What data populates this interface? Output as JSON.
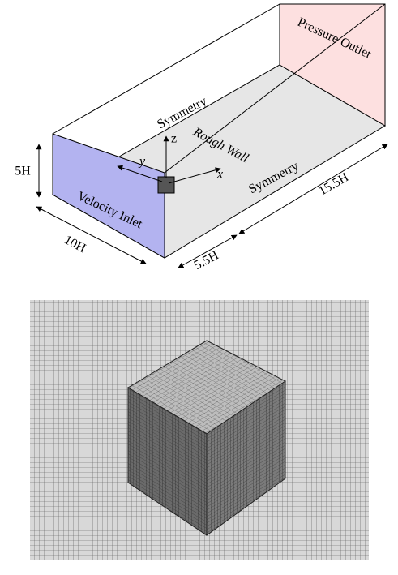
{
  "domain_diagram": {
    "labels": {
      "pressure_outlet": "Pressure Outlet",
      "symmetry_top": "Symmetry",
      "rough_wall": "Rough Wall",
      "symmetry_side": "Symmetry",
      "velocity_inlet": "Velocity Inlet",
      "height": "5H",
      "width": "10H",
      "upstream": "5.5H",
      "downstream": "15.5H",
      "axis_x": "x",
      "axis_y": "y",
      "axis_z": "z"
    }
  }
}
